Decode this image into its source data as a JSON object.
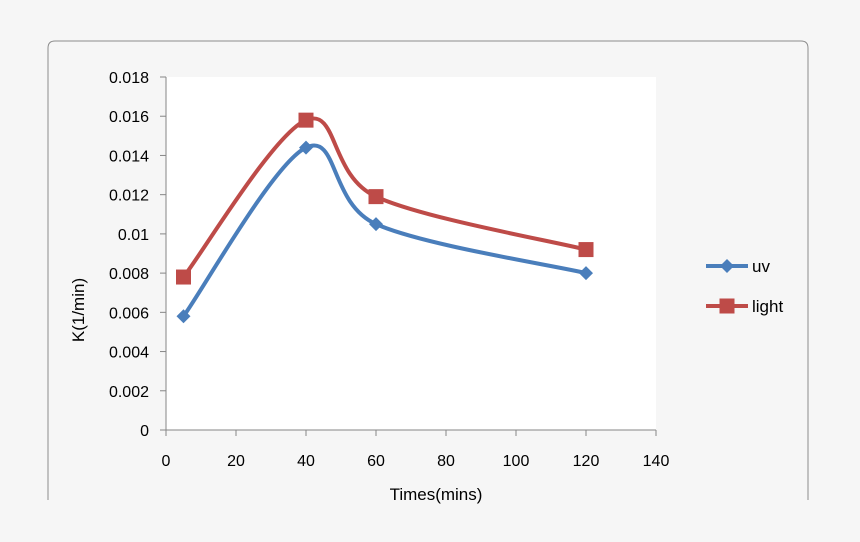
{
  "chart_data": {
    "type": "line",
    "title": "",
    "xlabel": "Times(mins)",
    "ylabel": "K(1/min)",
    "xlim": [
      0,
      140
    ],
    "ylim": [
      0,
      0.018
    ],
    "x_ticks": [
      0,
      20,
      40,
      60,
      80,
      100,
      120,
      140
    ],
    "x_tick_labels": [
      "0",
      "20",
      "40",
      "60",
      "80",
      "100",
      "120",
      "140"
    ],
    "y_ticks": [
      0,
      0.002,
      0.004,
      0.006,
      0.008,
      0.01,
      0.012,
      0.014,
      0.016,
      0.018
    ],
    "y_tick_labels": [
      "0",
      "0.002",
      "0.004",
      "0.006",
      "0.008",
      "0.01",
      "0.012",
      "0.014",
      "0.016",
      "0.018"
    ],
    "grid": false,
    "smooth": true,
    "legend_position": "right",
    "series": [
      {
        "name": "uv",
        "color": "#4a7ebb",
        "marker": "diamond",
        "x": [
          5,
          40,
          60,
          120
        ],
        "y": [
          0.0058,
          0.0144,
          0.0105,
          0.008
        ]
      },
      {
        "name": "light",
        "color": "#be4b48",
        "marker": "square",
        "x": [
          5,
          40,
          60,
          120
        ],
        "y": [
          0.0078,
          0.0158,
          0.0119,
          0.0092
        ]
      }
    ]
  }
}
